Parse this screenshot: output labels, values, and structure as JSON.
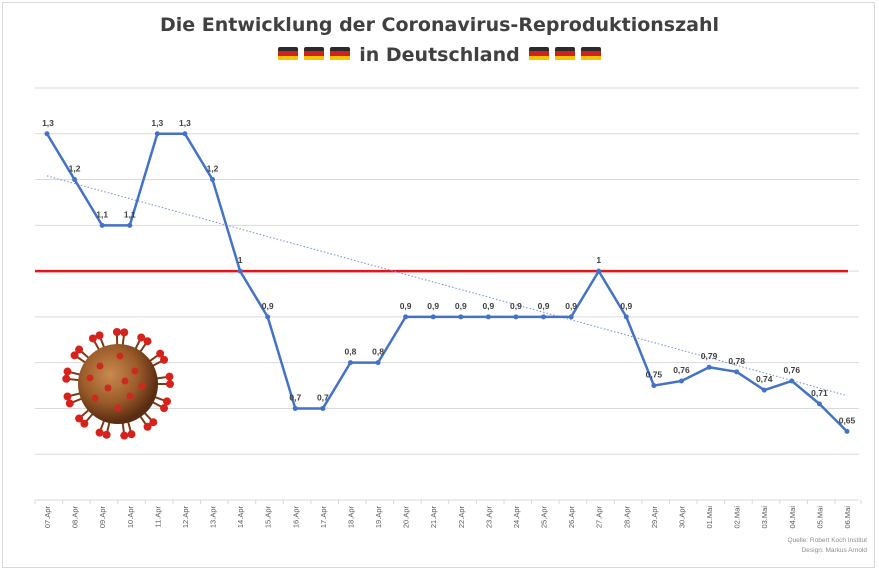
{
  "header": {
    "title_line1": "Die Entwicklung der Coronavirus-Reproduktionszahl",
    "title_line2": "in Deutschland"
  },
  "source": {
    "line1": "Quelle: Robert Koch Institut",
    "line2": "Design: Markus Arnold"
  },
  "colors": {
    "line": "#4472c4",
    "threshold": "#e8141c",
    "trend": "#6f8fd0",
    "grid": "#d9d9d9",
    "label": "#404040"
  },
  "chart_data": {
    "type": "line",
    "title": "Die Entwicklung der Coronavirus-Reproduktionszahl in Deutschland",
    "categories": [
      "07.Apr",
      "08.Apr",
      "09.Apr",
      "10.Apr",
      "11.Apr",
      "12.Apr",
      "13.Apr",
      "14.Apr",
      "15.Apr",
      "16.Apr",
      "17.Apr",
      "18.Apr",
      "19.Apr",
      "20.Apr",
      "21.Apr",
      "22.Apr",
      "23.Apr",
      "24.Apr",
      "25.Apr",
      "26.Apr",
      "27.Apr",
      "28.Apr",
      "29.Apr",
      "30.Apr",
      "01.Mai",
      "02.Mai",
      "03.Mai",
      "04.Mai",
      "05.Mai",
      "06.Mai"
    ],
    "series": [
      {
        "values": [
          1.3,
          1.2,
          1.1,
          1.1,
          1.3,
          1.3,
          1.2,
          1.0,
          0.9,
          0.7,
          0.7,
          0.8,
          0.8,
          0.9,
          0.9,
          0.9,
          0.9,
          0.9,
          0.9,
          0.9,
          1.0,
          0.9,
          0.75,
          0.76,
          0.79,
          0.78,
          0.74,
          0.76,
          0.71,
          0.65
        ],
        "labels": [
          "1,3",
          "1,2",
          "1,1",
          "1,1",
          "1,3",
          "1,3",
          "1,2",
          "1",
          "0,9",
          "0,7",
          "0,7",
          "0,8",
          "0,8",
          "0,9",
          "0,9",
          "0,9",
          "0,9",
          "0,9",
          "0,9",
          "0,9",
          "1",
          "0,9",
          "0,75",
          "0,76",
          "0,79",
          "0,78",
          "0,74",
          "0,76",
          "0,71",
          "0,65"
        ]
      }
    ],
    "reference_line": 1.0,
    "trendline": "linear",
    "ylim": [
      0.5,
      1.4
    ],
    "grid": true,
    "legend": "none"
  }
}
